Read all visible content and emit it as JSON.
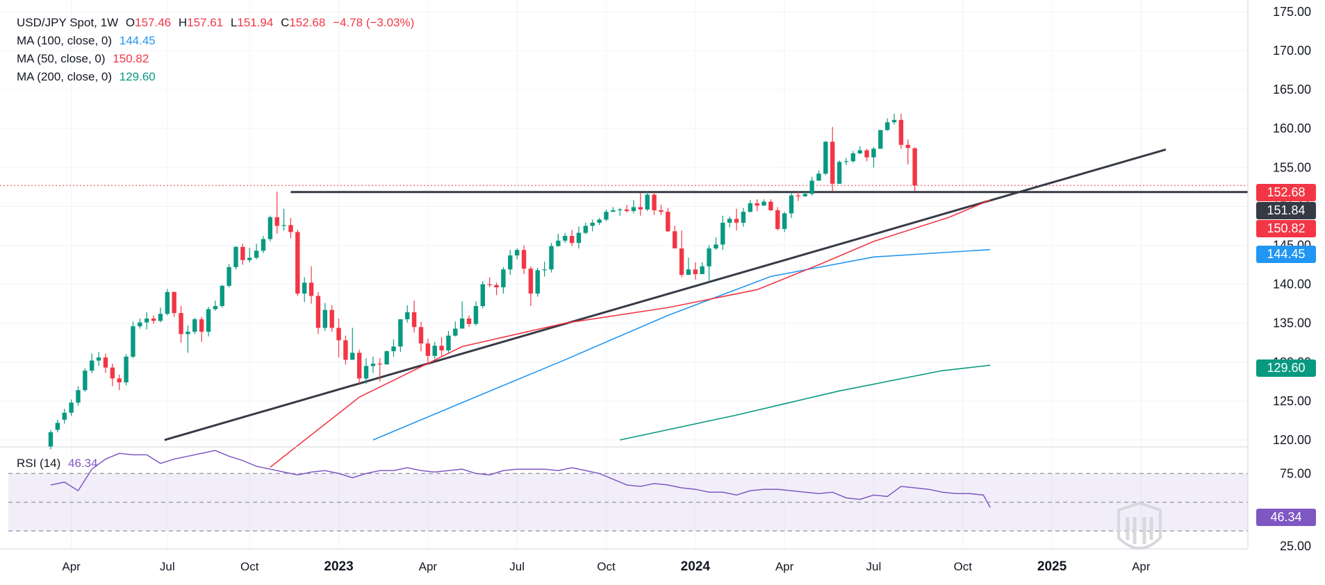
{
  "header": {
    "symbol": "USD/JPY Spot, 1W",
    "o_label": "O",
    "open": "157.46",
    "h_label": "H",
    "high": "157.61",
    "l_label": "L",
    "low": "151.94",
    "c_label": "C",
    "close": "152.68",
    "change": "−4.78 (−3.03%)"
  },
  "indicators": [
    {
      "label": "MA (100, close, 0)",
      "value": "144.45",
      "color": "#2196f3"
    },
    {
      "label": "MA (50, close, 0)",
      "value": "150.82",
      "color": "#f23645"
    },
    {
      "label": "MA (200, close, 0)",
      "value": "129.60",
      "color": "#089981"
    }
  ],
  "rsi": {
    "label": "RSI (14)",
    "value": "46.34",
    "color": "#7e57c2"
  },
  "price_tags": {
    "last": {
      "text": "152.68",
      "color": "#f23645"
    },
    "level": {
      "text": "151.84",
      "color": "#363a45"
    },
    "ma50": {
      "text": "150.82",
      "color": "#f23645"
    },
    "ma100": {
      "text": "144.45",
      "color": "#2196f3"
    },
    "ma200": {
      "text": "129.60",
      "color": "#089981"
    },
    "rsi": {
      "text": "46.34",
      "color": "#7e57c2"
    }
  },
  "colors": {
    "up": "#089981",
    "down": "#f23645",
    "grid": "#f0f3fa",
    "trend": "#363a45"
  },
  "chart_data": {
    "type": "candlestick",
    "timeframe": "1W",
    "x_ticks": [
      "Apr",
      "Jul",
      "Oct",
      "2023",
      "Apr",
      "Jul",
      "Oct",
      "2024",
      "Apr",
      "Jul",
      "Oct",
      "2025",
      "Apr"
    ],
    "y_ticks": [
      "175.00",
      "170.00",
      "165.00",
      "160.00",
      "155.00",
      "150.00",
      "145.00",
      "140.00",
      "135.00",
      "130.00",
      "125.00",
      "120.00"
    ],
    "ylim": [
      119.2,
      176.5
    ],
    "rsi_ticks": [
      "75.00",
      "25.00"
    ],
    "rsi_bands": [
      70,
      30
    ],
    "rsi_mid": 50,
    "rsi_ylim": [
      18,
      88
    ],
    "week_start": "2022-03-14",
    "candles": [
      [
        119.15,
        121.0,
        118.8,
        121.3
      ],
      [
        121.3,
        122.2,
        121.0,
        122.6
      ],
      [
        122.6,
        123.5,
        122.1,
        124.0
      ],
      [
        123.5,
        124.8,
        123.1,
        125.2
      ],
      [
        124.8,
        126.4,
        124.4,
        126.9
      ],
      [
        126.4,
        128.9,
        126.2,
        129.2
      ],
      [
        128.9,
        130.2,
        128.6,
        131.1
      ],
      [
        130.2,
        130.6,
        129.5,
        131.3
      ],
      [
        130.6,
        129.3,
        128.6,
        131.1
      ],
      [
        129.3,
        127.9,
        126.9,
        129.8
      ],
      [
        127.9,
        127.4,
        126.4,
        128.4
      ],
      [
        127.4,
        130.7,
        127.0,
        131.0
      ],
      [
        130.7,
        134.6,
        130.5,
        135.2
      ],
      [
        134.6,
        135.1,
        134.3,
        135.6
      ],
      [
        135.1,
        135.6,
        134.2,
        136.4
      ],
      [
        135.6,
        135.3,
        134.9,
        136.0
      ],
      [
        135.3,
        136.2,
        135.1,
        137.0
      ],
      [
        136.2,
        139.0,
        136.0,
        139.4
      ],
      [
        139.0,
        136.3,
        135.8,
        139.1
      ],
      [
        136.3,
        133.6,
        132.5,
        137.2
      ],
      [
        133.6,
        133.9,
        131.2,
        134.7
      ],
      [
        133.9,
        135.5,
        133.6,
        135.7
      ],
      [
        135.5,
        133.9,
        132.6,
        135.8
      ],
      [
        133.9,
        136.8,
        133.3,
        137.1
      ],
      [
        136.8,
        137.2,
        136.6,
        137.9
      ],
      [
        137.2,
        139.8,
        137.0,
        139.9
      ],
      [
        139.8,
        142.2,
        139.6,
        142.6
      ],
      [
        142.2,
        144.8,
        141.9,
        144.9
      ],
      [
        144.8,
        143.1,
        142.5,
        145.2
      ],
      [
        143.1,
        143.4,
        142.8,
        144.7
      ],
      [
        143.4,
        144.3,
        143.2,
        145.2
      ],
      [
        144.3,
        145.8,
        144.0,
        146.2
      ],
      [
        145.8,
        148.6,
        145.5,
        148.8
      ],
      [
        148.6,
        147.5,
        146.5,
        151.9
      ],
      [
        147.5,
        147.6,
        146.9,
        149.7
      ],
      [
        147.6,
        146.7,
        145.9,
        148.5
      ],
      [
        146.7,
        138.8,
        138.5,
        147.0
      ],
      [
        138.8,
        140.2,
        137.7,
        140.9
      ],
      [
        140.2,
        138.5,
        137.5,
        142.3
      ],
      [
        138.5,
        134.4,
        133.6,
        139.0
      ],
      [
        134.4,
        136.7,
        134.0,
        137.6
      ],
      [
        136.7,
        134.4,
        133.9,
        137.3
      ],
      [
        134.4,
        132.8,
        130.6,
        135.6
      ],
      [
        132.8,
        130.3,
        129.7,
        133.4
      ],
      [
        130.3,
        131.2,
        130.3,
        134.4
      ],
      [
        131.2,
        127.9,
        127.2,
        131.6
      ],
      [
        127.9,
        129.5,
        127.2,
        130.5
      ],
      [
        129.5,
        129.8,
        128.6,
        130.7
      ],
      [
        129.8,
        129.7,
        127.5,
        130.5
      ],
      [
        129.7,
        131.4,
        130.0,
        131.5
      ],
      [
        131.4,
        132.0,
        130.7,
        132.9
      ],
      [
        132.0,
        135.5,
        131.3,
        135.5
      ],
      [
        135.5,
        136.4,
        135.1,
        137.3
      ],
      [
        136.4,
        134.5,
        133.8,
        137.9
      ],
      [
        134.5,
        132.4,
        131.4,
        135.2
      ],
      [
        132.4,
        130.8,
        129.7,
        133.0
      ],
      [
        130.8,
        132.1,
        130.4,
        132.6
      ],
      [
        132.1,
        131.5,
        130.7,
        133.2
      ],
      [
        131.5,
        133.4,
        131.2,
        134.0
      ],
      [
        133.4,
        134.3,
        133.3,
        135.2
      ],
      [
        134.3,
        135.6,
        134.5,
        137.8
      ],
      [
        135.6,
        134.9,
        134.5,
        136.0
      ],
      [
        134.9,
        137.2,
        134.7,
        137.8
      ],
      [
        137.2,
        140.0,
        136.9,
        140.4
      ],
      [
        140.0,
        139.9,
        139.6,
        140.9
      ],
      [
        139.9,
        139.6,
        138.6,
        140.2
      ],
      [
        139.6,
        141.9,
        138.8,
        142.2
      ],
      [
        141.9,
        143.7,
        141.2,
        144.4
      ],
      [
        143.7,
        144.4,
        143.2,
        144.6
      ],
      [
        144.4,
        142.0,
        141.3,
        145.0
      ],
      [
        142.0,
        138.8,
        137.2,
        142.3
      ],
      [
        138.8,
        141.8,
        138.4,
        142.1
      ],
      [
        141.8,
        141.9,
        141.0,
        142.9
      ],
      [
        141.9,
        144.9,
        141.5,
        145.3
      ],
      [
        144.9,
        145.6,
        144.8,
        146.5
      ],
      [
        145.6,
        146.2,
        145.3,
        146.6
      ],
      [
        146.2,
        145.3,
        144.9,
        147.0
      ],
      [
        145.3,
        146.6,
        144.6,
        147.4
      ],
      [
        146.6,
        147.5,
        146.4,
        147.9
      ],
      [
        147.5,
        147.9,
        146.8,
        148.3
      ],
      [
        147.9,
        148.3,
        147.6,
        148.5
      ],
      [
        148.3,
        149.3,
        148.1,
        149.6
      ],
      [
        149.3,
        149.5,
        149.3,
        149.9
      ],
      [
        149.5,
        149.6,
        148.8,
        149.8
      ],
      [
        149.6,
        149.4,
        149.2,
        150.2
      ],
      [
        149.4,
        149.9,
        149.1,
        150.8
      ],
      [
        149.9,
        149.6,
        148.8,
        151.7
      ],
      [
        149.6,
        151.5,
        149.4,
        151.9
      ],
      [
        151.5,
        149.5,
        148.9,
        151.8
      ],
      [
        149.5,
        149.3,
        148.9,
        150.2
      ],
      [
        149.3,
        146.8,
        146.7,
        149.8
      ],
      [
        146.8,
        144.6,
        144.6,
        147.5
      ],
      [
        144.6,
        141.2,
        140.9,
        146.9
      ],
      [
        141.2,
        141.9,
        141.3,
        143.4
      ],
      [
        141.9,
        141.3,
        140.6,
        142.8
      ],
      [
        141.3,
        142.3,
        141.3,
        142.8
      ],
      [
        142.3,
        144.6,
        140.3,
        145.0
      ],
      [
        144.6,
        145.1,
        144.4,
        146.0
      ],
      [
        145.1,
        147.9,
        144.4,
        148.8
      ],
      [
        147.9,
        148.4,
        147.3,
        148.7
      ],
      [
        148.4,
        147.9,
        146.9,
        149.7
      ],
      [
        147.9,
        149.3,
        147.4,
        149.8
      ],
      [
        149.3,
        150.4,
        149.2,
        150.8
      ],
      [
        150.4,
        150.1,
        149.4,
        150.9
      ],
      [
        150.1,
        150.6,
        150.1,
        150.9
      ],
      [
        150.6,
        149.5,
        149.4,
        150.9
      ],
      [
        149.5,
        147.1,
        146.9,
        149.9
      ],
      [
        147.1,
        149.1,
        146.7,
        149.3
      ],
      [
        149.1,
        151.4,
        148.5,
        151.8
      ],
      [
        151.4,
        151.3,
        150.7,
        151.9
      ],
      [
        151.3,
        151.6,
        151.2,
        151.9
      ],
      [
        151.6,
        153.3,
        151.4,
        153.8
      ],
      [
        153.3,
        154.2,
        153.7,
        154.6
      ],
      [
        154.2,
        158.3,
        154.0,
        158.4
      ],
      [
        158.3,
        152.9,
        151.9,
        160.2
      ],
      [
        152.9,
        155.7,
        152.9,
        155.9
      ],
      [
        155.7,
        155.8,
        155.3,
        156.2
      ],
      [
        155.8,
        156.8,
        155.6,
        157.1
      ],
      [
        156.8,
        157.2,
        156.7,
        157.7
      ],
      [
        157.2,
        156.3,
        155.8,
        157.4
      ],
      [
        156.3,
        157.4,
        155.0,
        157.6
      ],
      [
        157.4,
        159.8,
        157.4,
        159.8
      ],
      [
        159.8,
        160.8,
        159.7,
        161.3
      ],
      [
        160.8,
        161.1,
        160.5,
        161.9
      ],
      [
        161.1,
        157.9,
        157.4,
        161.9
      ],
      [
        157.9,
        157.5,
        155.4,
        158.6
      ],
      [
        157.46,
        152.68,
        151.94,
        157.61
      ]
    ],
    "ma50": [
      [
        32,
        116.5
      ],
      [
        45,
        125.5
      ],
      [
        60,
        132.0
      ],
      [
        75,
        135.0
      ],
      [
        90,
        137.0
      ],
      [
        103,
        139.3
      ],
      [
        112,
        142.5
      ],
      [
        120,
        145.5
      ],
      [
        131,
        148.6
      ],
      [
        137,
        150.82
      ]
    ],
    "ma100": [
      [
        47,
        120.0
      ],
      [
        60,
        124.8
      ],
      [
        75,
        130.3
      ],
      [
        90,
        136.0
      ],
      [
        105,
        141.0
      ],
      [
        120,
        143.5
      ],
      [
        137,
        144.45
      ]
    ],
    "ma200": [
      [
        83,
        120.0
      ],
      [
        100,
        123.2
      ],
      [
        115,
        126.3
      ],
      [
        130,
        128.9
      ],
      [
        137,
        129.6
      ]
    ],
    "trendline": [
      [
        16.6,
        120.0
      ],
      [
        162.6,
        157.3
      ]
    ],
    "horizontal_level": {
      "value": 151.84,
      "from_week": 35
    },
    "rsi_series": [
      [
        0,
        62
      ],
      [
        2,
        64
      ],
      [
        4,
        58
      ],
      [
        6,
        73
      ],
      [
        8,
        80
      ],
      [
        10,
        84
      ],
      [
        12,
        83
      ],
      [
        14,
        83
      ],
      [
        16,
        77
      ],
      [
        18,
        80
      ],
      [
        20,
        82
      ],
      [
        22,
        84
      ],
      [
        24,
        86
      ],
      [
        26,
        82
      ],
      [
        28,
        79
      ],
      [
        30,
        75
      ],
      [
        32,
        73
      ],
      [
        34,
        71
      ],
      [
        36,
        69
      ],
      [
        38,
        71
      ],
      [
        40,
        72
      ],
      [
        42,
        70
      ],
      [
        44,
        67
      ],
      [
        46,
        70
      ],
      [
        48,
        72
      ],
      [
        50,
        72
      ],
      [
        52,
        74
      ],
      [
        54,
        72
      ],
      [
        56,
        71
      ],
      [
        58,
        72
      ],
      [
        60,
        73
      ],
      [
        62,
        70
      ],
      [
        64,
        69
      ],
      [
        66,
        72
      ],
      [
        68,
        73
      ],
      [
        70,
        73
      ],
      [
        72,
        73
      ],
      [
        74,
        72
      ],
      [
        76,
        74
      ],
      [
        78,
        72
      ],
      [
        80,
        70
      ],
      [
        82,
        66
      ],
      [
        84,
        62
      ],
      [
        86,
        61
      ],
      [
        88,
        63
      ],
      [
        90,
        62
      ],
      [
        92,
        60
      ],
      [
        94,
        59
      ],
      [
        96,
        57
      ],
      [
        98,
        57
      ],
      [
        100,
        55
      ],
      [
        102,
        58
      ],
      [
        104,
        59
      ],
      [
        106,
        59
      ],
      [
        108,
        58
      ],
      [
        110,
        57
      ],
      [
        112,
        56
      ],
      [
        114,
        57
      ],
      [
        116,
        53
      ],
      [
        118,
        52
      ],
      [
        120,
        55
      ],
      [
        122,
        54
      ],
      [
        124,
        61
      ],
      [
        126,
        60
      ],
      [
        128,
        59
      ],
      [
        130,
        57
      ],
      [
        132,
        56
      ],
      [
        134,
        56
      ],
      [
        136,
        55
      ],
      [
        137,
        46.34
      ]
    ]
  }
}
